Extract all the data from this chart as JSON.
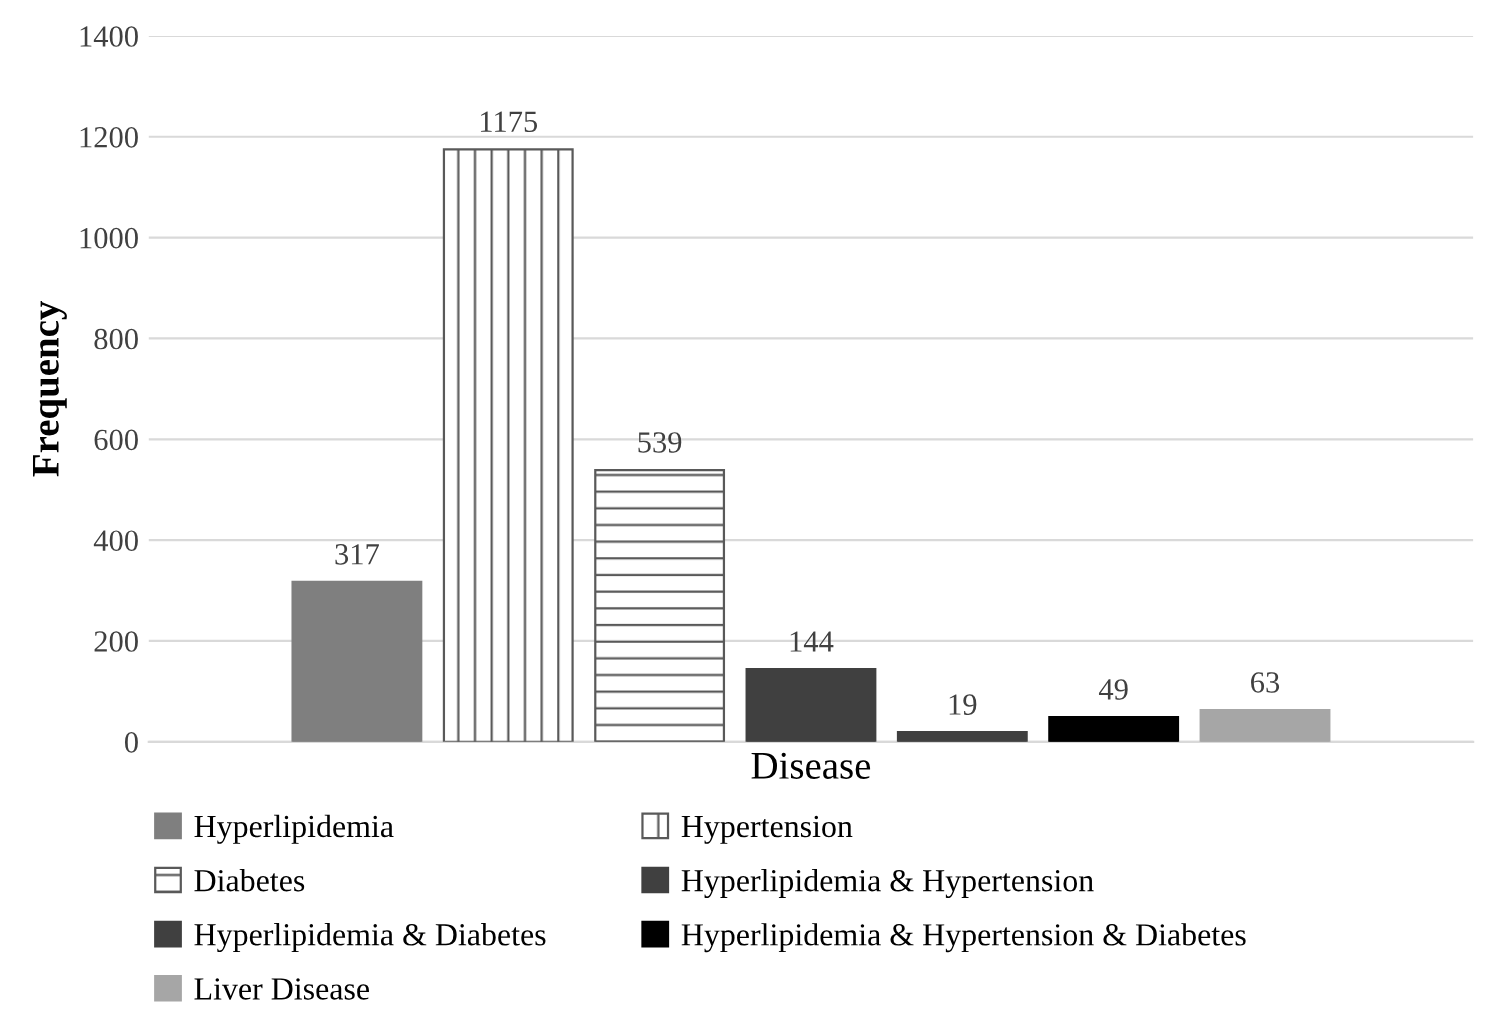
{
  "chart_data": {
    "type": "bar",
    "xlabel": "Disease",
    "ylabel": "Frequency",
    "categories": [
      null
    ],
    "series": [
      {
        "name": "Hyperlipidemia",
        "color": "#7f7f7f",
        "values": [
          317
        ]
      },
      {
        "name": "Hypertension",
        "color": "#595959",
        "values": [
          1175
        ]
      },
      {
        "name": "Diabetes",
        "color": "#595959",
        "values": [
          539
        ]
      },
      {
        "name": "Hyperlipidemia & Hypertension",
        "color": "#404040",
        "values": [
          144
        ]
      },
      {
        "name": "Hyperlipidemia & Diabetes",
        "color": "#404040",
        "values": [
          19
        ]
      },
      {
        "name": "Hyperlipidemia & Hypertension & Diabetes",
        "color": "#000000",
        "values": [
          49
        ]
      },
      {
        "name": "Liver Disease",
        "color": "#a6a6a6",
        "values": [
          63
        ]
      }
    ],
    "ylim": [
      0,
      1400
    ],
    "yticks": [
      0,
      200,
      400,
      600,
      800,
      1000,
      1200,
      1400
    ],
    "grid": "y",
    "legend": "bottom",
    "data_labels": true
  }
}
